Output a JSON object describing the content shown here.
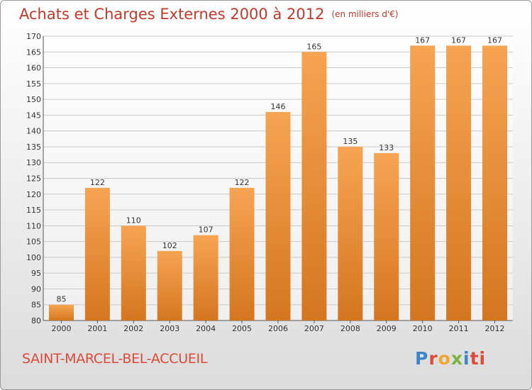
{
  "header": {
    "title": "Achats et Charges Externes 2000 à 2012",
    "unit": "(en milliers d'€)"
  },
  "footer": {
    "city": "SAINT-MARCEL-BEL-ACCUEIL",
    "logo_letters": [
      "P",
      "r",
      "o",
      "x",
      "i",
      "ti"
    ]
  },
  "chart_data": {
    "type": "bar",
    "title": "Achats et Charges Externes 2000 à 2012",
    "subtitle": "(en milliers d'€)",
    "categories": [
      "2000",
      "2001",
      "2002",
      "2003",
      "2004",
      "2005",
      "2006",
      "2007",
      "2008",
      "2009",
      "2010",
      "2011",
      "2012"
    ],
    "values": [
      85,
      122,
      110,
      102,
      107,
      122,
      146,
      165,
      135,
      133,
      167,
      167,
      167
    ],
    "ylim": [
      80,
      170
    ],
    "yticks": [
      80,
      85,
      90,
      95,
      100,
      105,
      110,
      115,
      120,
      125,
      130,
      135,
      140,
      145,
      150,
      155,
      160,
      165,
      170
    ],
    "grid": true,
    "bar_color_light": "#f6a452",
    "bar_color_dark": "#d4761f"
  }
}
